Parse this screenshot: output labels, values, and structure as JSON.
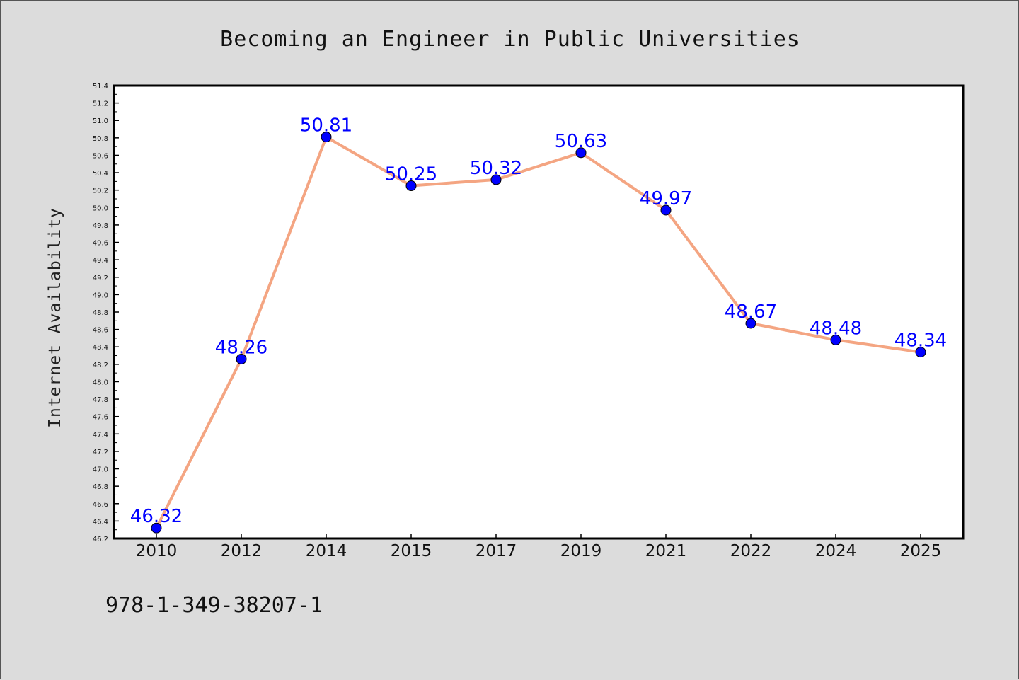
{
  "chart_data": {
    "type": "line",
    "title": "Becoming an Engineer in Public Universities",
    "xlabel": "",
    "ylabel": "Internet Availability",
    "categories": [
      "2010",
      "2012",
      "2014",
      "2015",
      "2017",
      "2019",
      "2021",
      "2022",
      "2024",
      "2025"
    ],
    "series": [
      {
        "values": [
          46.32,
          48.26,
          50.81,
          50.25,
          50.32,
          50.63,
          49.97,
          48.67,
          48.48,
          48.34
        ],
        "data_labels": [
          "46.32",
          "48.26",
          "50.81",
          "50.25",
          "50.32",
          "50.63",
          "49.97",
          "48.67",
          "48.48",
          "48.34"
        ],
        "line_color": "#f4a582",
        "marker_color": "#0000ff"
      }
    ],
    "ylim": [
      46.2,
      51.4
    ],
    "yticks": [
      "46.2",
      "46.4",
      "46.6",
      "46.8",
      "47.0",
      "47.2",
      "47.4",
      "47.6",
      "47.8",
      "48.0",
      "48.2",
      "48.4",
      "48.6",
      "48.8",
      "49.0",
      "49.2",
      "49.4",
      "49.6",
      "49.8",
      "50.0",
      "50.2",
      "50.4",
      "50.6",
      "50.8",
      "51.0",
      "51.2",
      "51.4"
    ],
    "grid": false,
    "legend": "none",
    "label_color": "#0000ff"
  },
  "footnote": "978-1-349-38207-1",
  "colors": {
    "page_background": "#dcdcdc",
    "plot_background": "#ffffff",
    "axis": "#000000"
  }
}
